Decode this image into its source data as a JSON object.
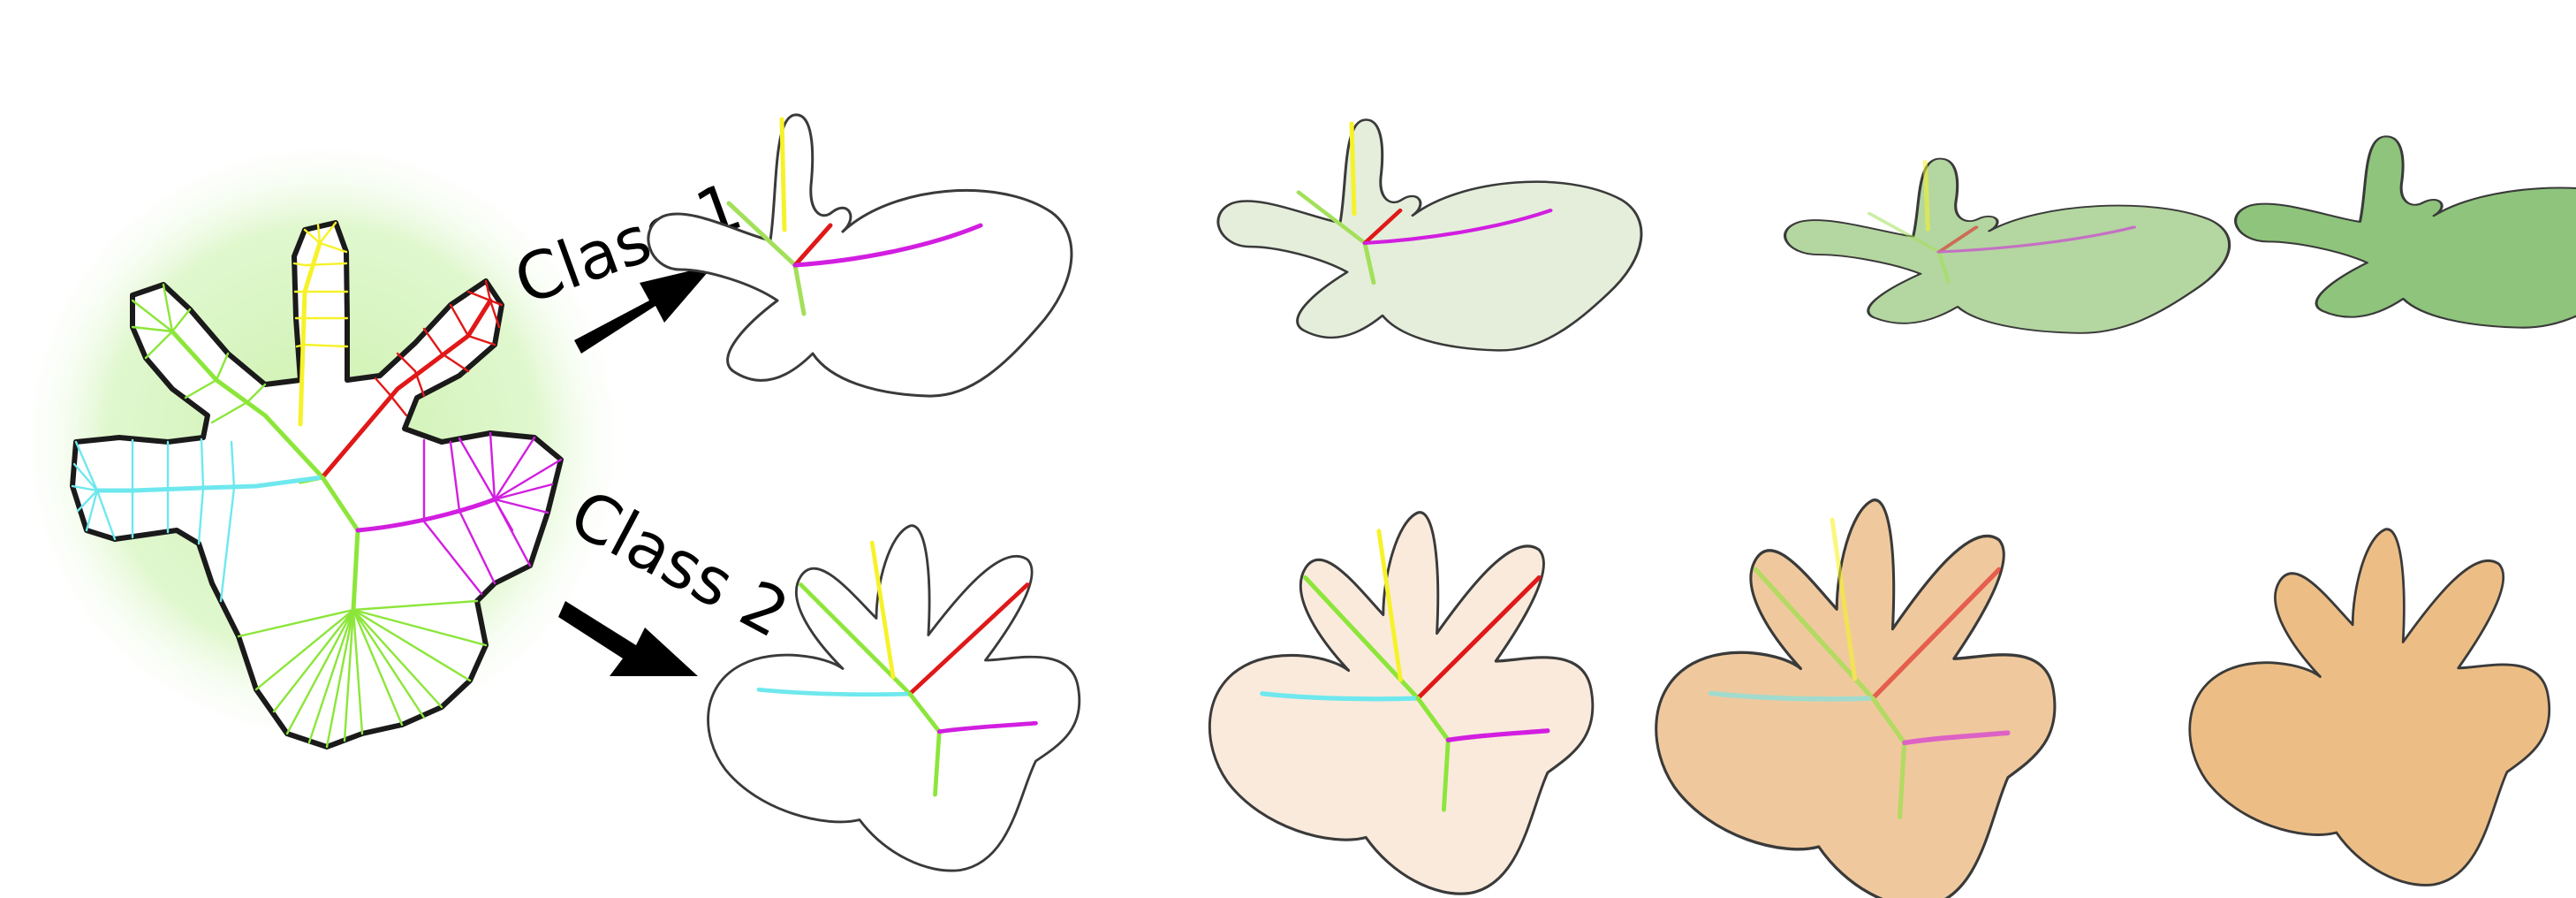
{
  "labels": {
    "class1": "Class 1",
    "class2": "Class 2"
  },
  "colors": {
    "glow": "#c8f0a8",
    "outline": "#3a3a3a",
    "class1_fills": [
      "#ffffff",
      "#e4eedb",
      "#b4d6a0",
      "#8ec47b"
    ],
    "class2_fills": [
      "#ffffff",
      "#faeadc",
      "#efc99d",
      "#ecbe86"
    ],
    "branch_colors": {
      "trunk": "#8ce63a",
      "yellow": "#f6f22a",
      "red": "#e01818",
      "cyan": "#6ee8ee",
      "magenta": "#d21ee0"
    }
  },
  "rows": [
    {
      "name": "class-1",
      "stages": 4
    },
    {
      "name": "class-2",
      "stages": 4
    }
  ]
}
